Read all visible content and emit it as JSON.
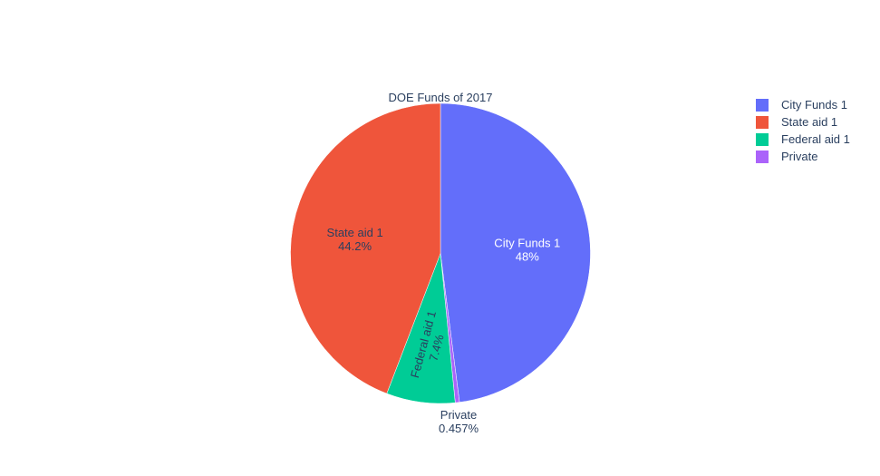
{
  "chart_data": {
    "type": "pie",
    "title": "DOE Funds of 2017",
    "slices": [
      {
        "label": "City Funds 1",
        "percent": 48,
        "percent_label": "48%",
        "color": "#636efa",
        "text_color": "#ffffff",
        "label_mode": "inside"
      },
      {
        "label": "Private",
        "percent": 0.457,
        "percent_label": "0.457%",
        "color": "#ab63fa",
        "text_color": "#2a3f5f",
        "label_mode": "outside"
      },
      {
        "label": "Federal aid 1",
        "percent": 7.4,
        "percent_label": "7.4%",
        "color": "#00cc96",
        "text_color": "#2a3f5f",
        "label_mode": "inside-rotated"
      },
      {
        "label": "State aid 1",
        "percent": 44.2,
        "percent_label": "44.2%",
        "color": "#ef553b",
        "text_color": "#2a3f5f",
        "label_mode": "inside"
      }
    ],
    "legend": {
      "position": "top-right",
      "entries": [
        {
          "label": "City Funds 1",
          "color": "#636efa"
        },
        {
          "label": "State aid 1",
          "color": "#ef553b"
        },
        {
          "label": "Federal aid 1",
          "color": "#00cc96"
        },
        {
          "label": "Private",
          "color": "#ab63fa"
        }
      ]
    }
  }
}
